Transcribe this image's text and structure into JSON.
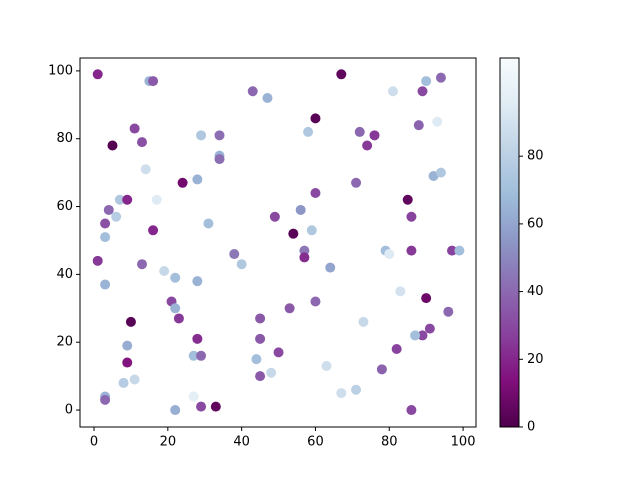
{
  "chart_data": {
    "type": "scatter",
    "x": [
      1,
      15,
      16,
      43,
      47,
      67,
      90,
      94,
      81,
      89,
      60,
      58,
      72,
      76,
      74,
      88,
      93,
      5,
      11,
      13,
      29,
      34,
      34,
      34,
      14,
      24,
      28,
      60,
      71,
      92,
      94,
      7,
      9,
      17,
      4,
      6,
      3,
      3,
      31,
      49,
      85,
      86,
      56,
      59,
      54,
      16,
      57,
      57,
      38,
      40,
      64,
      79,
      80,
      86,
      97,
      99,
      1,
      13,
      19,
      22,
      28,
      3,
      21,
      22,
      23,
      60,
      53,
      45,
      83,
      90,
      96,
      10,
      73,
      91,
      89,
      87,
      28,
      45,
      50,
      9,
      82,
      9,
      27,
      29,
      44,
      63,
      48,
      45,
      78,
      11,
      8,
      3,
      3,
      27,
      67,
      71,
      22,
      29,
      33,
      86
    ],
    "series": [
      {
        "values": [
          99,
          97,
          97,
          94,
          92,
          99,
          97,
          98,
          94,
          94,
          86,
          82,
          82,
          81,
          78,
          84,
          85,
          78,
          83,
          79,
          81,
          81,
          75,
          74,
          71,
          67,
          68,
          64,
          67,
          69,
          70,
          62,
          62,
          62,
          59,
          57,
          55,
          51,
          55,
          57,
          62,
          57,
          59,
          53,
          52,
          53,
          47,
          45,
          46,
          43,
          42,
          47,
          46,
          47,
          47,
          47,
          44,
          43,
          41,
          39,
          38,
          37,
          32,
          30,
          27,
          32,
          30,
          27,
          35,
          33,
          29,
          26,
          26,
          24,
          22,
          22,
          21,
          21,
          17,
          19,
          18,
          14,
          16,
          16,
          15,
          13,
          11,
          10,
          12,
          9,
          8,
          4,
          3,
          4,
          5,
          6,
          0,
          1,
          1,
          0
        ],
        "color_values": [
          20,
          65,
          35,
          40,
          65,
          5,
          70,
          40,
          88,
          30,
          3,
          75,
          40,
          25,
          25,
          38,
          95,
          2,
          30,
          32,
          75,
          42,
          65,
          42,
          88,
          10,
          65,
          30,
          40,
          65,
          75,
          75,
          20,
          95,
          40,
          78,
          32,
          70,
          70,
          30,
          5,
          28,
          55,
          75,
          3,
          20,
          45,
          22,
          45,
          75,
          60,
          70,
          95,
          25,
          28,
          70,
          25,
          40,
          85,
          70,
          65,
          65,
          30,
          65,
          25,
          40,
          35,
          35,
          90,
          8,
          40,
          3,
          85,
          30,
          30,
          70,
          22,
          35,
          30,
          63,
          28,
          15,
          70,
          40,
          70,
          88,
          85,
          35,
          38,
          85,
          78,
          65,
          40,
          97,
          88,
          80,
          63,
          30,
          5,
          30
        ]
      }
    ],
    "xlim": [
      -3.8,
      103.5
    ],
    "ylim": [
      -5,
      103.8
    ],
    "xticks": [
      0,
      20,
      40,
      60,
      80,
      100
    ],
    "yticks": [
      0,
      20,
      40,
      60,
      80,
      100
    ],
    "clim": [
      0,
      109
    ],
    "cticks": [
      0,
      20,
      40,
      60,
      80
    ],
    "colormap": [
      "#4d004b",
      "#810f7c",
      "#88419d",
      "#8c6bb1",
      "#8c96c6",
      "#9ebcda",
      "#bfd3e6",
      "#e0ecf4",
      "#f7fcfd"
    ]
  }
}
